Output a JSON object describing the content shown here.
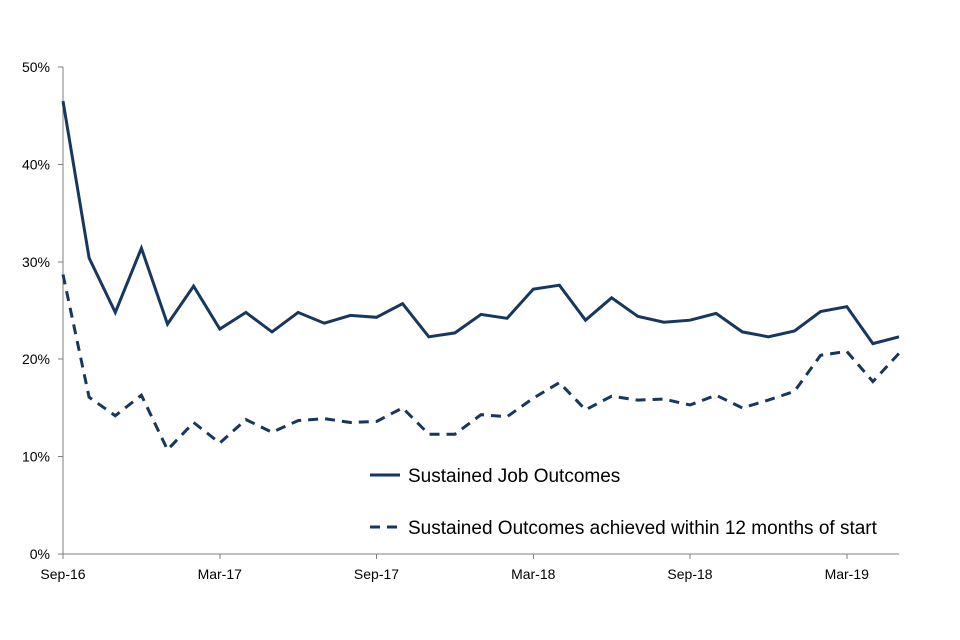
{
  "chart_data": {
    "type": "line",
    "title": "",
    "xlabel": "",
    "ylabel": "",
    "ylim": [
      0,
      50
    ],
    "y_unit": "%",
    "y_ticks": [
      0,
      10,
      20,
      30,
      40,
      50
    ],
    "y_tick_labels": [
      "0%",
      "10%",
      "20%",
      "30%",
      "40%",
      "50%"
    ],
    "x_tick_labels": [
      "Sep-16",
      "Mar-17",
      "Sep-17",
      "Mar-18",
      "Sep-18",
      "Mar-19"
    ],
    "x_tick_index": [
      0,
      6,
      12,
      18,
      24,
      30
    ],
    "grid": false,
    "legend_position": "inside-bottom-right",
    "categories": [
      "Sep-16",
      "Oct-16",
      "Nov-16",
      "Dec-16",
      "Jan-17",
      "Feb-17",
      "Mar-17",
      "Apr-17",
      "May-17",
      "Jun-17",
      "Jul-17",
      "Aug-17",
      "Sep-17",
      "Oct-17",
      "Nov-17",
      "Dec-17",
      "Jan-18",
      "Feb-18",
      "Mar-18",
      "Apr-18",
      "May-18",
      "Jun-18",
      "Jul-18",
      "Aug-18",
      "Sep-18",
      "Oct-18",
      "Nov-18",
      "Dec-18",
      "Jan-19",
      "Feb-19",
      "Mar-19",
      "Apr-19",
      "May-19"
    ],
    "series": [
      {
        "name": "Sustained Job Outcomes",
        "style": "solid",
        "color": "#17375e",
        "values": [
          46.5,
          30.4,
          24.8,
          31.4,
          23.6,
          27.5,
          23.1,
          24.8,
          22.8,
          24.8,
          23.7,
          24.5,
          24.3,
          25.7,
          22.3,
          22.7,
          24.6,
          24.2,
          27.2,
          27.6,
          24.0,
          26.3,
          24.4,
          23.8,
          24.0,
          24.7,
          22.8,
          22.3,
          22.9,
          24.9,
          25.4,
          21.6,
          22.3
        ]
      },
      {
        "name": "Sustained Outcomes achieved within 12 months of start",
        "style": "dashed",
        "color": "#17375e",
        "values": [
          28.7,
          16.1,
          14.2,
          16.3,
          10.7,
          13.5,
          11.4,
          13.8,
          12.5,
          13.7,
          13.9,
          13.5,
          13.6,
          15.0,
          12.3,
          12.3,
          14.3,
          14.1,
          16.0,
          17.6,
          14.8,
          16.2,
          15.8,
          15.9,
          15.3,
          16.3,
          15.0,
          15.8,
          16.7,
          20.4,
          20.8,
          17.7,
          20.6
        ]
      }
    ]
  }
}
